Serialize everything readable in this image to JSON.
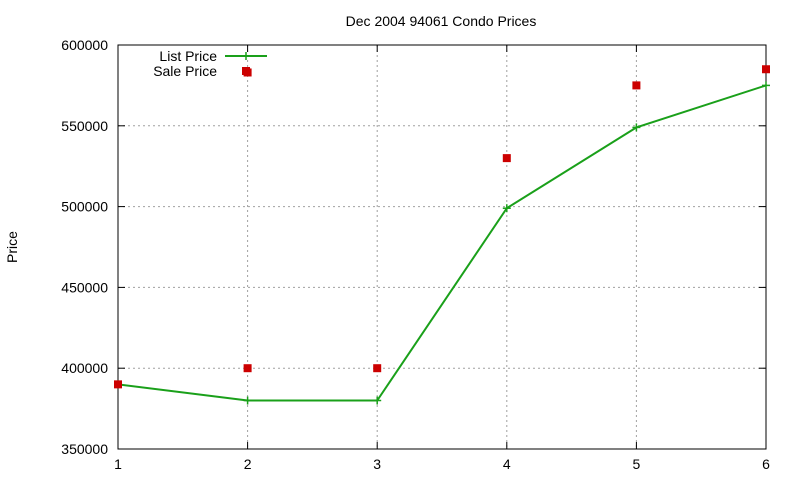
{
  "chart_data": {
    "type": "line",
    "title": "Dec 2004 94061 Condo Prices",
    "xlabel": "",
    "ylabel": "Price",
    "xlim": [
      1,
      6
    ],
    "ylim": [
      350000,
      600000
    ],
    "x_ticks": [
      "1",
      "2",
      "3",
      "4",
      "5",
      "6"
    ],
    "y_ticks": [
      "350000",
      "400000",
      "450000",
      "500000",
      "550000",
      "600000"
    ],
    "grid": true,
    "legend_position": "top-left",
    "series": [
      {
        "name": "List Price",
        "style": "line-with-plus-markers",
        "color": "#1aa01a",
        "x": [
          1,
          2,
          3,
          4,
          5,
          6
        ],
        "values": [
          390000,
          380000,
          380000,
          499000,
          549000,
          575000
        ]
      },
      {
        "name": "Sale Price",
        "style": "square-points",
        "color": "#cc0000",
        "points": [
          [
            1,
            390000
          ],
          [
            2,
            400000
          ],
          [
            2,
            583000
          ],
          [
            3,
            400000
          ],
          [
            4,
            530000
          ],
          [
            5,
            575000
          ],
          [
            6,
            585000
          ]
        ]
      }
    ]
  }
}
